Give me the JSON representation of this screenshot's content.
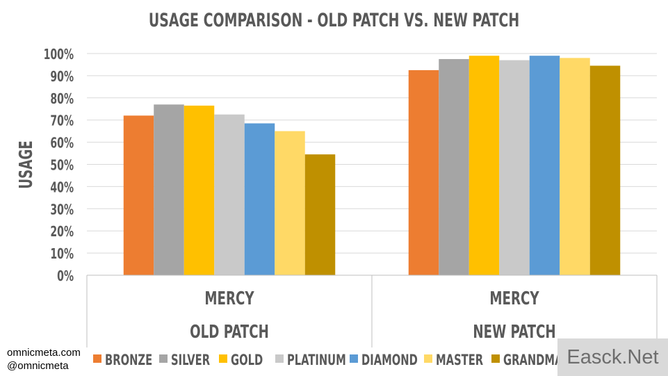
{
  "chart_data": {
    "type": "bar",
    "title": "USAGE COMPARISON - OLD PATCH VS. NEW PATCH",
    "ylabel": "USAGE",
    "xlabel": "",
    "ylim": [
      0,
      100
    ],
    "y_ticks": [
      "0%",
      "10%",
      "20%",
      "30%",
      "40%",
      "50%",
      "60%",
      "70%",
      "80%",
      "90%",
      "100%"
    ],
    "grid": true,
    "categories": [
      {
        "label": "MERCY",
        "group": "OLD PATCH"
      },
      {
        "label": "MERCY",
        "group": "NEW PATCH"
      }
    ],
    "series": [
      {
        "name": "BRONZE",
        "color": "#ED7D31",
        "values": [
          72,
          92.5
        ]
      },
      {
        "name": "SILVER",
        "color": "#A5A5A5",
        "values": [
          77,
          97.5
        ]
      },
      {
        "name": "GOLD",
        "color": "#FFC000",
        "values": [
          76.5,
          99
        ]
      },
      {
        "name": "PLATINUM",
        "color": "#C9C9C9",
        "values": [
          72.5,
          97
        ]
      },
      {
        "name": "DIAMOND",
        "color": "#5B9BD5",
        "values": [
          68.5,
          99
        ]
      },
      {
        "name": "MASTER",
        "color": "#FFD966",
        "values": [
          65,
          98
        ]
      },
      {
        "name": "GRANDMASTER",
        "color": "#BF9000",
        "values": [
          54.5,
          94.5
        ]
      }
    ],
    "legend_position": "bottom"
  },
  "credits": {
    "site": "omnicmeta.com",
    "handle": "@omnicmeta"
  },
  "watermark": "Easck.Net"
}
